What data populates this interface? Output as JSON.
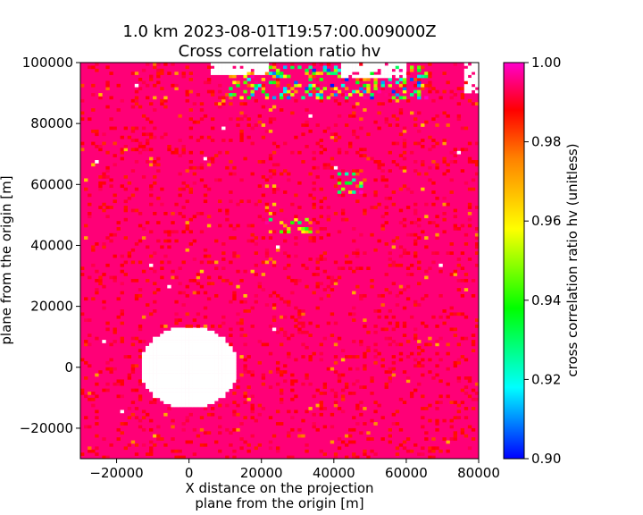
{
  "chart_data": {
    "type": "heatmap",
    "title": "1.0 km 2023-08-01T19:57:00.009000Z",
    "subtitle": "Cross correlation ratio hv",
    "xlabel_lines": [
      "X distance on the projection",
      "plane from the origin [m]"
    ],
    "ylabel": "plane from the origin [m]",
    "colorbar_label": "cross correlation ratio hv (unitless)",
    "xlim": [
      -30000,
      80000
    ],
    "ylim": [
      -30000,
      100000
    ],
    "x_ticks": [
      -20000,
      0,
      20000,
      40000,
      60000,
      80000
    ],
    "y_ticks": [
      -20000,
      0,
      20000,
      40000,
      60000,
      80000,
      100000
    ],
    "colorbar_range": [
      0.9,
      1.0
    ],
    "colorbar_ticks": [
      "0.90",
      "0.92",
      "0.94",
      "0.96",
      "0.98",
      "1.00"
    ],
    "colormap": [
      "#0000ff",
      "#00ffff",
      "#00ff00",
      "#ffff00",
      "#ff8000",
      "#ff0000",
      "#ff00cc"
    ],
    "background_value": 0.995,
    "grid_cell_m": 1000,
    "no_data_regions": [
      {
        "shape": "circle",
        "center": [
          0,
          0
        ],
        "radius": 13500
      },
      {
        "shape": "rect",
        "x": [
          6000,
          22000
        ],
        "y": [
          96000,
          100000
        ]
      },
      {
        "shape": "rect",
        "x": [
          42000,
          60000
        ],
        "y": [
          95000,
          100000
        ]
      },
      {
        "shape": "rect",
        "x": [
          76000,
          80000
        ],
        "y": [
          90000,
          100000
        ]
      }
    ],
    "features": [
      {
        "label": "band near x=30000 y=47000",
        "x": [
          20000,
          36000
        ],
        "y": [
          44000,
          49000
        ],
        "min_value": 0.93
      },
      {
        "label": "cluster near x=45000 y=62000",
        "x": [
          41000,
          48000
        ],
        "y": [
          57000,
          64000
        ],
        "min_value": 0.92
      },
      {
        "label": "top edge clutter",
        "x": [
          10000,
          66000
        ],
        "y": [
          88000,
          99000
        ],
        "min_value": 0.9
      }
    ]
  }
}
